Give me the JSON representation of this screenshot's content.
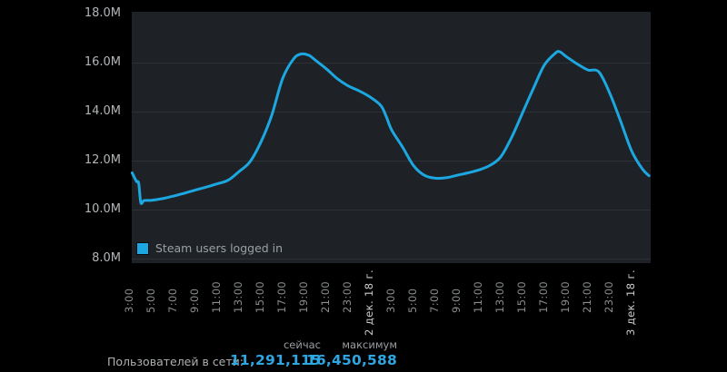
{
  "figure": {
    "legend": {
      "label": "Steam users logged in"
    },
    "colors": {
      "page_bg": "#000000",
      "plot_bg": "#1e2227",
      "grid": "#2d3136",
      "line": "#1ca7e0",
      "axis_text": "#b2b5b7",
      "tick_text": "#8a8e91",
      "date_text": "#c7cacc",
      "legend_text": "#9ba0a3",
      "header_text": "#9a9ea1",
      "label_text": "#aeb1b3",
      "value_text": "#2da6e2"
    }
  },
  "stats": {
    "row_label": "Пользователей в сети:",
    "col_now": "сейчас",
    "col_max": "максимум",
    "now_value": "11,291,115",
    "max_value": "16,450,588"
  },
  "chart_data": {
    "type": "line",
    "title": "Steam users logged in",
    "xlabel": "",
    "ylabel": "",
    "grid": "horizontal",
    "legend_position": "inside-bottom-left",
    "ylim_millions": [
      8,
      18
    ],
    "y_ticks": [
      {
        "value_millions": 18,
        "label": "18.0M"
      },
      {
        "value_millions": 16,
        "label": "16.0M"
      },
      {
        "value_millions": 14,
        "label": "14.0M"
      },
      {
        "value_millions": 12,
        "label": "12.0M"
      },
      {
        "value_millions": 10,
        "label": "10.0M"
      },
      {
        "value_millions": 8,
        "label": "8.0M"
      }
    ],
    "x_ticks": [
      {
        "hour": 3,
        "label": "3:00",
        "is_date": false
      },
      {
        "hour": 5,
        "label": "5:00",
        "is_date": false
      },
      {
        "hour": 7,
        "label": "7:00",
        "is_date": false
      },
      {
        "hour": 9,
        "label": "9:00",
        "is_date": false
      },
      {
        "hour": 11,
        "label": "11:00",
        "is_date": false
      },
      {
        "hour": 13,
        "label": "13:00",
        "is_date": false
      },
      {
        "hour": 15,
        "label": "15:00",
        "is_date": false
      },
      {
        "hour": 17,
        "label": "17:00",
        "is_date": false
      },
      {
        "hour": 19,
        "label": "19:00",
        "is_date": false
      },
      {
        "hour": 21,
        "label": "21:00",
        "is_date": false
      },
      {
        "hour": 23,
        "label": "23:00",
        "is_date": false
      },
      {
        "hour": 25,
        "label": "2 дек. 18 г.",
        "is_date": true
      },
      {
        "hour": 27,
        "label": "3:00",
        "is_date": false
      },
      {
        "hour": 29,
        "label": "5:00",
        "is_date": false
      },
      {
        "hour": 31,
        "label": "7:00",
        "is_date": false
      },
      {
        "hour": 33,
        "label": "9:00",
        "is_date": false
      },
      {
        "hour": 35,
        "label": "11:00",
        "is_date": false
      },
      {
        "hour": 37,
        "label": "13:00",
        "is_date": false
      },
      {
        "hour": 39,
        "label": "15:00",
        "is_date": false
      },
      {
        "hour": 41,
        "label": "17:00",
        "is_date": false
      },
      {
        "hour": 43,
        "label": "19:00",
        "is_date": false
      },
      {
        "hour": 45,
        "label": "21:00",
        "is_date": false
      },
      {
        "hour": 47,
        "label": "23:00",
        "is_date": false
      },
      {
        "hour": 49,
        "label": "3 дек. 18 г.",
        "is_date": true
      }
    ],
    "series": [
      {
        "name": "Steam users logged in",
        "unit": "millions of users; x = hours since 00:00 on 1 дек. 18",
        "points": [
          [
            2.2,
            11.5
          ],
          [
            2.6,
            11.15
          ],
          [
            2.8,
            11.08
          ],
          [
            3.0,
            10.28
          ],
          [
            3.3,
            10.37
          ],
          [
            4,
            10.38
          ],
          [
            5,
            10.45
          ],
          [
            6,
            10.55
          ],
          [
            7,
            10.67
          ],
          [
            8,
            10.8
          ],
          [
            9,
            10.92
          ],
          [
            10,
            11.05
          ],
          [
            11,
            11.2
          ],
          [
            12,
            11.55
          ],
          [
            13,
            11.95
          ],
          [
            14,
            12.75
          ],
          [
            15,
            13.85
          ],
          [
            16,
            15.35
          ],
          [
            17,
            16.15
          ],
          [
            17.7,
            16.35
          ],
          [
            18.4,
            16.3
          ],
          [
            19,
            16.1
          ],
          [
            20,
            15.75
          ],
          [
            21,
            15.35
          ],
          [
            22,
            15.05
          ],
          [
            23,
            14.85
          ],
          [
            24,
            14.6
          ],
          [
            25,
            14.25
          ],
          [
            25.5,
            13.8
          ],
          [
            26,
            13.25
          ],
          [
            27,
            12.55
          ],
          [
            28,
            11.8
          ],
          [
            29,
            11.4
          ],
          [
            30,
            11.28
          ],
          [
            31,
            11.3
          ],
          [
            32,
            11.4
          ],
          [
            33,
            11.5
          ],
          [
            34,
            11.62
          ],
          [
            35,
            11.8
          ],
          [
            36,
            12.15
          ],
          [
            37,
            12.95
          ],
          [
            38,
            13.95
          ],
          [
            39,
            14.95
          ],
          [
            40,
            15.9
          ],
          [
            41,
            16.38
          ],
          [
            41.4,
            16.45
          ],
          [
            42,
            16.25
          ],
          [
            43,
            15.95
          ],
          [
            44,
            15.7
          ],
          [
            45,
            15.62
          ],
          [
            46,
            14.75
          ],
          [
            47,
            13.6
          ],
          [
            48,
            12.4
          ],
          [
            49,
            11.65
          ],
          [
            49.6,
            11.38
          ]
        ]
      }
    ]
  }
}
